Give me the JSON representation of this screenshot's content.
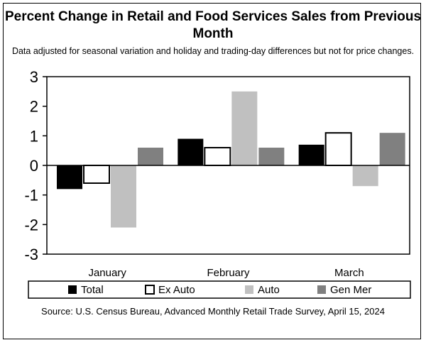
{
  "chart_data": {
    "type": "bar",
    "title": "Percent Change in Retail and Food Services Sales from Previous Month",
    "subtitle": "Data adjusted for seasonal variation and holiday and trading-day differences but not for price changes.",
    "categories": [
      "January",
      "February",
      "March"
    ],
    "series": [
      {
        "name": "Total",
        "color": "#000000",
        "values": [
          -0.8,
          0.9,
          0.7
        ]
      },
      {
        "name": "Ex Auto",
        "color": "#ffffff",
        "values": [
          -0.6,
          0.6,
          1.1
        ]
      },
      {
        "name": "Auto",
        "color": "#c0c0c0",
        "values": [
          -2.1,
          2.5,
          -0.7
        ]
      },
      {
        "name": "Gen Mer",
        "color": "#808080",
        "values": [
          0.6,
          0.6,
          1.1
        ]
      }
    ],
    "yticks": [
      "3",
      "2",
      "1",
      "0",
      "-1",
      "-2",
      "-3"
    ],
    "ylim": [
      -3,
      3
    ],
    "legend_position": "bottom",
    "source": "Source: U.S. Census Bureau, Advanced Monthly Retail Trade Survey, April 15, 2024"
  }
}
